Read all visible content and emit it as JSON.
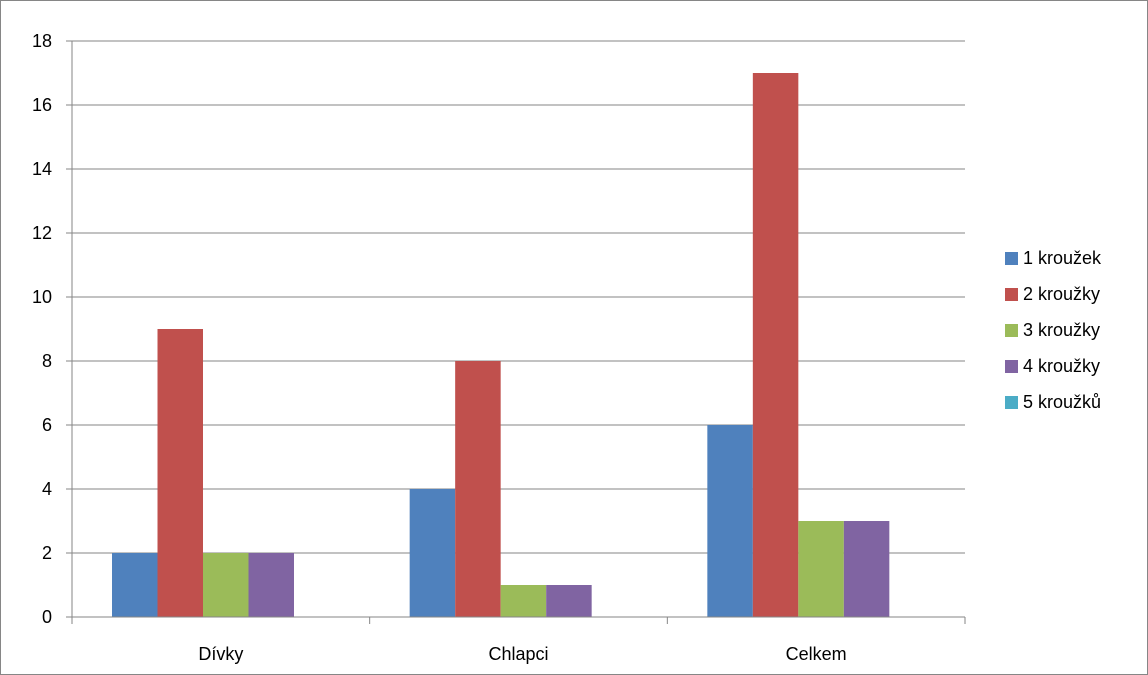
{
  "chart_data": {
    "type": "bar",
    "categories": [
      "Dívky",
      "Chlapci",
      "Celkem"
    ],
    "series": [
      {
        "name": "1 kroužek",
        "values": [
          2,
          4,
          6
        ],
        "color": "#4F81BD"
      },
      {
        "name": "2 kroužky",
        "values": [
          9,
          8,
          17
        ],
        "color": "#C0504D"
      },
      {
        "name": "3 kroužky",
        "values": [
          2,
          1,
          3
        ],
        "color": "#9BBB59"
      },
      {
        "name": "4 kroužky",
        "values": [
          2,
          1,
          3
        ],
        "color": "#8064A2"
      },
      {
        "name": "5 kroužků",
        "values": [
          0,
          0,
          0
        ],
        "color": "#4BACC6"
      }
    ],
    "ylim": [
      0,
      18
    ],
    "yticks": [
      0,
      2,
      4,
      6,
      8,
      10,
      12,
      14,
      16,
      18
    ],
    "title": "",
    "xlabel": "",
    "ylabel": "",
    "grid": true,
    "legend_position": "right"
  }
}
